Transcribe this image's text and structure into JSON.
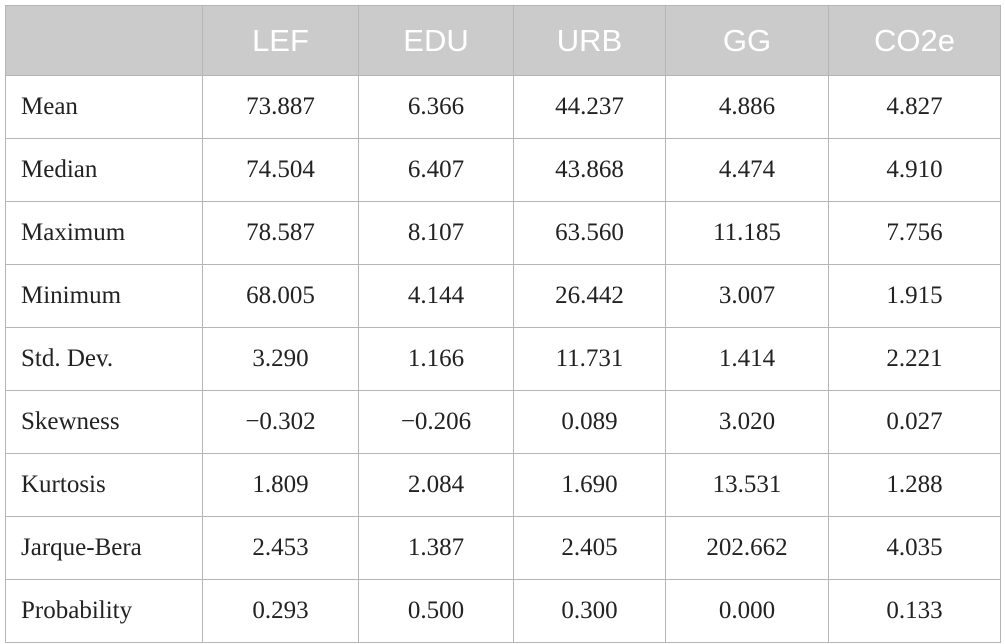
{
  "table": {
    "header": [
      "LEF",
      "EDU",
      "URB",
      "GG",
      "CO2e"
    ],
    "rows": [
      [
        "Mean",
        "73.887",
        "6.366",
        "44.237",
        "4.886",
        "4.827"
      ],
      [
        "Median",
        "74.504",
        "6.407",
        "43.868",
        "4.474",
        "4.910"
      ],
      [
        "Maximum",
        "78.587",
        "8.107",
        "63.560",
        "11.185",
        "7.756"
      ],
      [
        "Minimum",
        "68.005",
        "4.144",
        "26.442",
        "3.007",
        "1.915"
      ],
      [
        "Std. Dev.",
        "3.290",
        "1.166",
        "11.731",
        "1.414",
        "2.221"
      ],
      [
        "Skewness",
        "−0.302",
        "−0.206",
        "0.089",
        "3.020",
        "0.027"
      ],
      [
        "Kurtosis",
        "1.809",
        "2.084",
        "1.690",
        "13.531",
        "1.288"
      ],
      [
        "Jarque-Bera",
        "2.453",
        "1.387",
        "2.405",
        "202.662",
        "4.035"
      ],
      [
        "Probability",
        "0.293",
        "0.500",
        "0.300",
        "0.000",
        "0.133"
      ]
    ]
  }
}
